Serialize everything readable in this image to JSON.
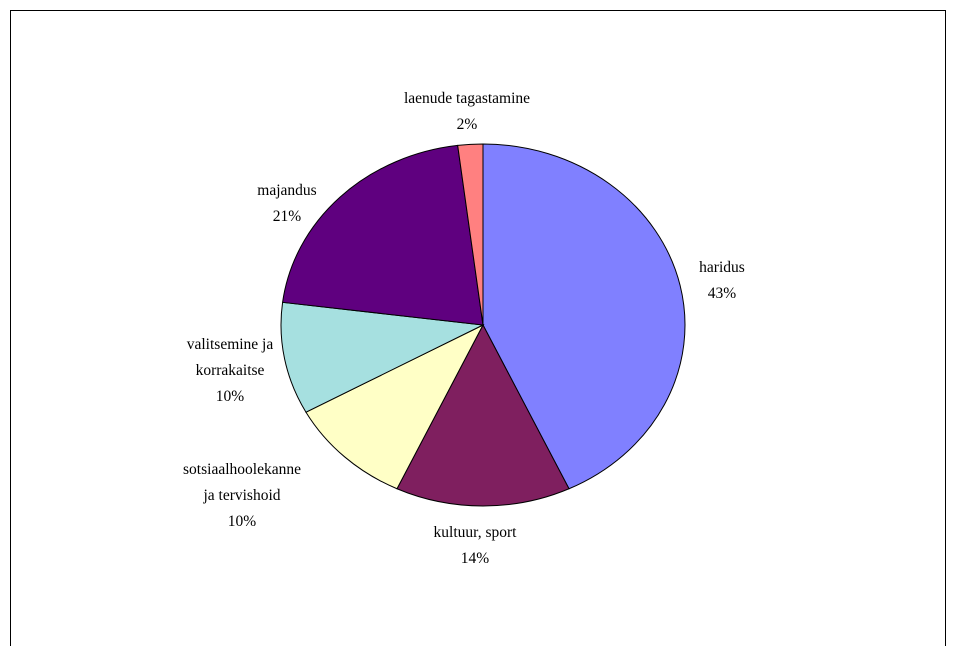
{
  "chart_data": {
    "type": "pie",
    "title": "",
    "slices": [
      {
        "label": [
          "haridus"
        ],
        "value": 43,
        "pct": "43%",
        "color": "#8080ff"
      },
      {
        "label": [
          "kultuur, sport"
        ],
        "value": 14,
        "pct": "14%",
        "color": "#7f1f5f"
      },
      {
        "label": [
          "sotsiaalhoolekanne",
          "ja tervishoid"
        ],
        "value": 10,
        "pct": "10%",
        "color": "#ffffc6"
      },
      {
        "label": [
          "valitsemine ja",
          "korrakaitse"
        ],
        "value": 10,
        "pct": "10%",
        "color": "#a6e0e0"
      },
      {
        "label": [
          "majandus"
        ],
        "value": 21,
        "pct": "21%",
        "color": "#5f007f"
      },
      {
        "label": [
          "laenude tagastamine"
        ],
        "value": 2,
        "pct": "2%",
        "color": "#ff8080"
      }
    ],
    "start": "12 o'clock",
    "direction": "clockwise",
    "legend": "none",
    "data_labels": "category name and percentage beside each slice"
  }
}
